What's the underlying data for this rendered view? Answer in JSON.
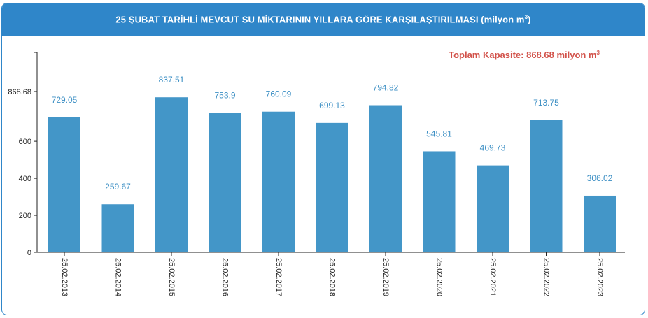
{
  "title": "25 ŞUBAT TARİHLİ MEVCUT SU MİKTARININ YILLARA GÖRE KARŞILAŞTIRILMASI (milyon m",
  "title_sup": "3",
  "title_end": ")",
  "colors": {
    "header": "#2f86c9",
    "bar": "#4396c8",
    "data_label": "#3c8fc4",
    "capacity_note": "#d2524a"
  },
  "chart_data": {
    "type": "bar",
    "title": "25 ŞUBAT TARİHLİ MEVCUT SU MİKTARININ YILLARA GÖRE KARŞILAŞTIRILMASI (milyon m³)",
    "categories": [
      "25.02.2013",
      "25.02.2014",
      "25.02.2015",
      "25.02.2016",
      "25.02.2017",
      "25.02.2018",
      "25.02.2019",
      "25.02.2020",
      "25.02.2021",
      "25.02.2022",
      "25.02.2023"
    ],
    "values": [
      729.05,
      259.67,
      837.51,
      753.9,
      760.09,
      699.13,
      794.82,
      545.81,
      469.73,
      713.75,
      306.02
    ],
    "value_labels": [
      "729.05",
      "259.67",
      "837.51",
      "753.9",
      "760.09",
      "699.13",
      "794.82",
      "545.81",
      "469.73",
      "713.75",
      "306.02"
    ],
    "y_ticks": [
      0,
      200,
      400,
      600,
      868.68
    ],
    "y_tick_labels": [
      "0",
      "200",
      "400",
      "600",
      "868.68"
    ],
    "ylim": [
      0,
      1080
    ],
    "grid": false,
    "capacity_note": {
      "text": "Toplam Kapasite: 868.68 milyon m",
      "sup": "3"
    }
  }
}
